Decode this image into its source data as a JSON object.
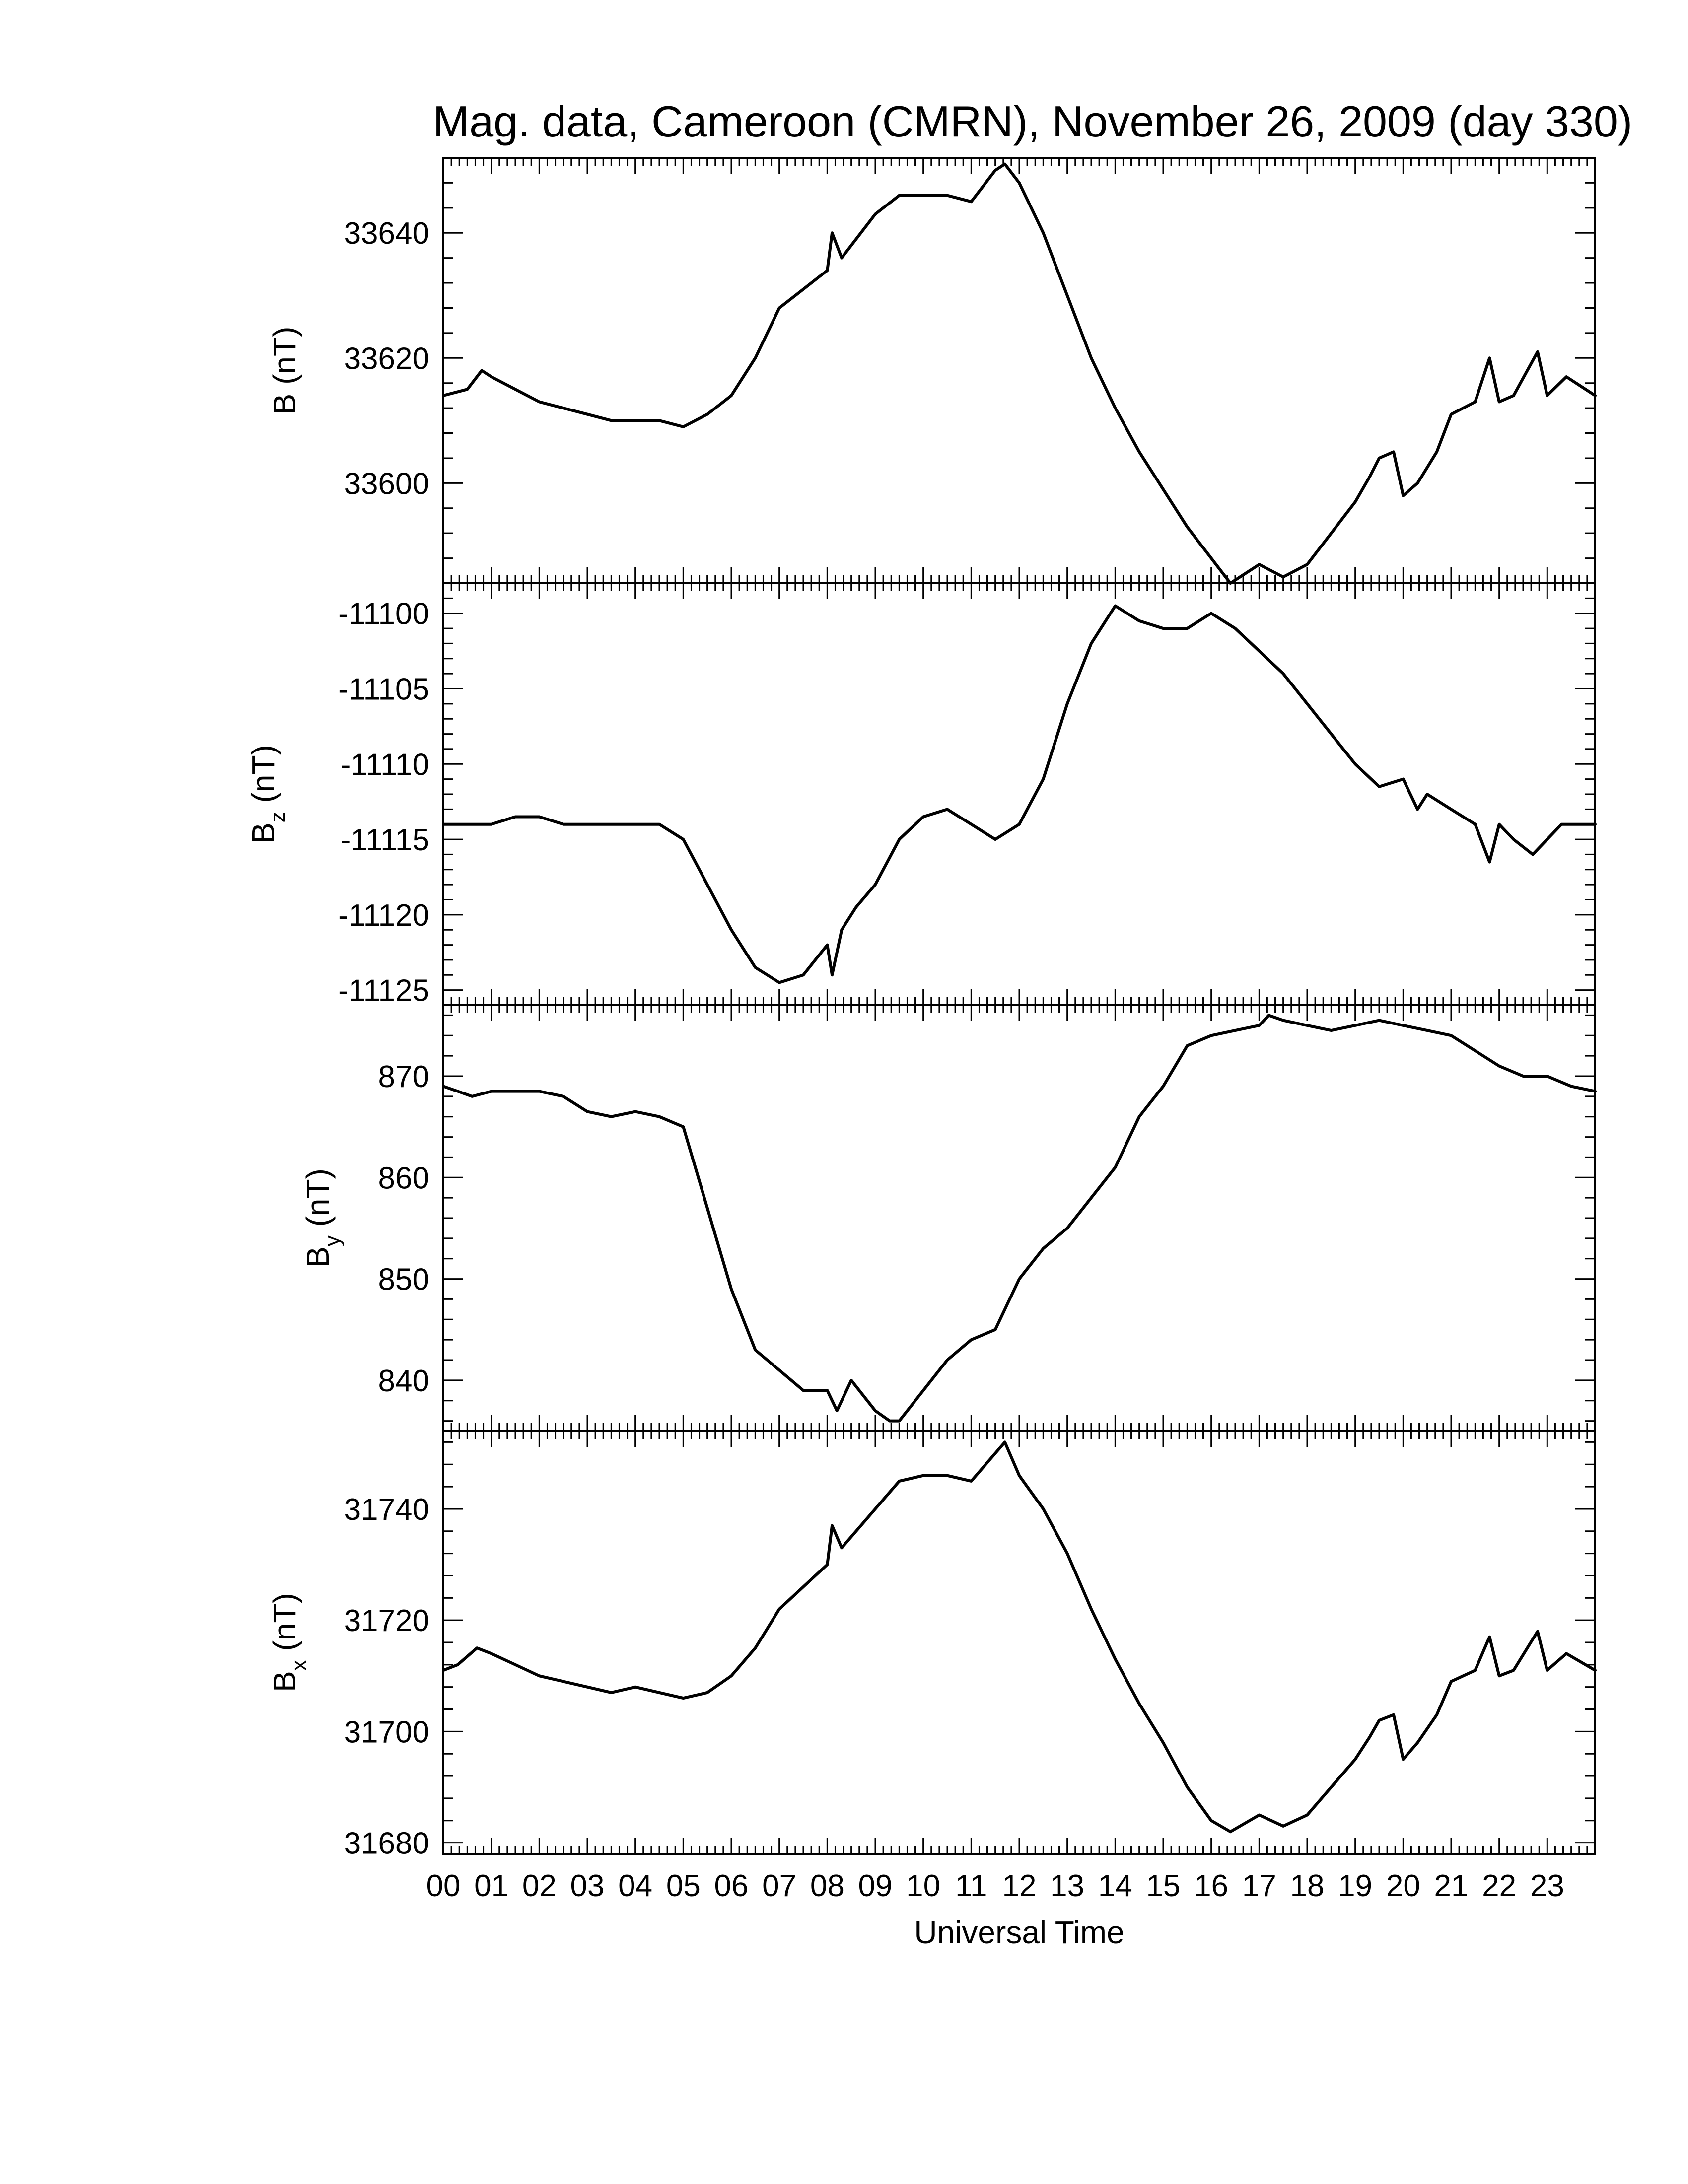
{
  "chart_data": {
    "type": "line",
    "title": "Mag. data, Cameroon (CMRN), November 26, 2009 (day 330)",
    "xlabel": "Universal Time",
    "x_ticks": [
      "00",
      "01",
      "02",
      "03",
      "04",
      "05",
      "06",
      "07",
      "08",
      "09",
      "10",
      "11",
      "12",
      "13",
      "14",
      "15",
      "16",
      "17",
      "18",
      "19",
      "20",
      "21",
      "22",
      "23"
    ],
    "xlim": [
      0,
      24
    ],
    "x_unit": "hours UT",
    "panels": [
      {
        "ylabel": "B (nT)",
        "ylabel_main": "B",
        "ylabel_sub": "",
        "ylabel_unit": "(nT)",
        "ylim": [
          33584,
          33652
        ],
        "yticks": [
          33600,
          33620,
          33640
        ],
        "series": [
          {
            "x": [
              0,
              0.5,
              0.8,
              1.0,
              1.5,
              2,
              2.5,
              3,
              3.5,
              4,
              4.5,
              5,
              5.5,
              6,
              6.5,
              7,
              7.5,
              8,
              8.1,
              8.3,
              9,
              9.5,
              10,
              10.5,
              11,
              11.5,
              11.7,
              12,
              12.5,
              13,
              13.5,
              14,
              14.5,
              15,
              15.5,
              16,
              16.4,
              16.8,
              17,
              17.5,
              18,
              18.5,
              19,
              19.3,
              19.5,
              19.8,
              20,
              20.3,
              20.7,
              21,
              21.5,
              21.8,
              22,
              22.3,
              22.8,
              23,
              23.4,
              24
            ],
            "y": [
              33614,
              33615,
              33618,
              33617,
              33615,
              33613,
              33612,
              33611,
              33610,
              33610,
              33610,
              33609,
              33611,
              33614,
              33620,
              33628,
              33631,
              33634,
              33640,
              33636,
              33643,
              33646,
              33646,
              33646,
              33645,
              33650,
              33651,
              33648,
              33640,
              33630,
              33620,
              33612,
              33605,
              33599,
              33593,
              33588,
              33584,
              33586,
              33587,
              33585,
              33587,
              33592,
              33597,
              33601,
              33604,
              33605,
              33598,
              33600,
              33605,
              33611,
              33613,
              33620,
              33613,
              33614,
              33621,
              33614,
              33617,
              33614
            ]
          }
        ]
      },
      {
        "ylabel": "Bz (nT)",
        "ylabel_main": "B",
        "ylabel_sub": "z",
        "ylabel_unit": "(nT)",
        "ylim": [
          -11126,
          -11098
        ],
        "yticks": [
          -11100,
          -11105,
          -11110,
          -11115,
          -11120,
          -11125
        ],
        "series": [
          {
            "x": [
              0,
              0.5,
              1,
              1.5,
              2,
              2.5,
              3,
              3.5,
              4,
              4.5,
              5,
              5.5,
              6,
              6.5,
              7,
              7.5,
              8,
              8.1,
              8.3,
              8.6,
              9,
              9.5,
              10,
              10.5,
              11,
              11.5,
              12,
              12.5,
              13,
              13.5,
              14,
              14.5,
              15,
              15.5,
              16,
              16.5,
              17,
              17.5,
              18,
              18.5,
              19,
              19.5,
              20,
              20.3,
              20.5,
              21,
              21.5,
              21.8,
              22,
              22.3,
              22.7,
              23,
              23.3,
              24
            ],
            "y": [
              -11114,
              -11114,
              -11114,
              -11113.5,
              -11113.5,
              -11114,
              -11114,
              -11114,
              -11114,
              -11114,
              -11115,
              -11118,
              -11121,
              -11123.5,
              -11124.5,
              -11124,
              -11122,
              -11124,
              -11121,
              -11119.5,
              -11118,
              -11115,
              -11113.5,
              -11113,
              -11114,
              -11115,
              -11114,
              -11111,
              -11106,
              -11102,
              -11099.5,
              -11100.5,
              -11101,
              -11101,
              -11100,
              -11101,
              -11102.5,
              -11104,
              -11106,
              -11108,
              -11110,
              -11111.5,
              -11111,
              -11113,
              -11112,
              -11113,
              -11114,
              -11116.5,
              -11114,
              -11115,
              -11116,
              -11115,
              -11114,
              -11114
            ]
          }
        ]
      },
      {
        "ylabel": "By (nT)",
        "ylabel_main": "B",
        "ylabel_sub": "y",
        "ylabel_unit": "(nT)",
        "ylim": [
          835,
          877
        ],
        "yticks": [
          840,
          850,
          860,
          870
        ],
        "series": [
          {
            "x": [
              0,
              0.3,
              0.6,
              1,
              1.5,
              2,
              2.5,
              3,
              3.5,
              4,
              4.5,
              5,
              5.5,
              6,
              6.5,
              7,
              7.5,
              8,
              8.2,
              8.5,
              9,
              9.3,
              9.5,
              10,
              10.5,
              11,
              11.5,
              12,
              12.5,
              13,
              13.5,
              14,
              14.5,
              15,
              15.5,
              16,
              16.5,
              17,
              17.2,
              17.5,
              18,
              18.5,
              19,
              19.5,
              20,
              20.5,
              21,
              21.5,
              22,
              22.5,
              23,
              23.5,
              24
            ],
            "y": [
              869,
              868.5,
              868,
              868.5,
              868.5,
              868.5,
              868,
              866.5,
              866,
              866.5,
              866,
              865,
              857,
              849,
              843,
              841,
              839,
              839,
              837,
              840,
              837,
              836,
              836,
              839,
              842,
              844,
              845,
              850,
              853,
              855,
              858,
              861,
              866,
              869,
              873,
              874,
              874.5,
              875,
              876,
              875.5,
              875,
              874.5,
              875,
              875.5,
              875,
              874.5,
              874,
              872.5,
              871,
              870,
              870,
              869,
              868.5
            ]
          }
        ]
      },
      {
        "ylabel": "Bx (nT)",
        "ylabel_main": "B",
        "ylabel_sub": "x",
        "ylabel_unit": "(nT)",
        "ylim": [
          31678,
          31754
        ],
        "yticks": [
          31680,
          31700,
          31720,
          31740
        ],
        "series": [
          {
            "x": [
              0,
              0.3,
              0.7,
              1,
              1.5,
              2,
              2.5,
              3,
              3.5,
              4,
              4.5,
              5,
              5.5,
              6,
              6.5,
              7,
              7.5,
              8,
              8.1,
              8.3,
              9,
              9.5,
              10,
              10.5,
              11,
              11.5,
              11.7,
              12,
              12.5,
              13,
              13.5,
              14,
              14.5,
              15,
              15.5,
              16,
              16.4,
              16.8,
              17,
              17.5,
              18,
              18.5,
              19,
              19.3,
              19.5,
              19.8,
              20,
              20.3,
              20.7,
              21,
              21.5,
              21.8,
              22,
              22.3,
              22.8,
              23,
              23.4,
              24
            ],
            "y": [
              31711,
              31712,
              31715,
              31714,
              31712,
              31710,
              31709,
              31708,
              31707,
              31708,
              31707,
              31706,
              31707,
              31710,
              31715,
              31722,
              31726,
              31730,
              31737,
              31733,
              31740,
              31745,
              31746,
              31746,
              31745,
              31750,
              31752,
              31746,
              31740,
              31732,
              31722,
              31713,
              31705,
              31698,
              31690,
              31684,
              31682,
              31684,
              31685,
              31683,
              31685,
              31690,
              31695,
              31699,
              31702,
              31703,
              31695,
              31698,
              31703,
              31709,
              31711,
              31717,
              31710,
              31711,
              31718,
              31711,
              31714,
              31711
            ]
          }
        ]
      }
    ]
  }
}
